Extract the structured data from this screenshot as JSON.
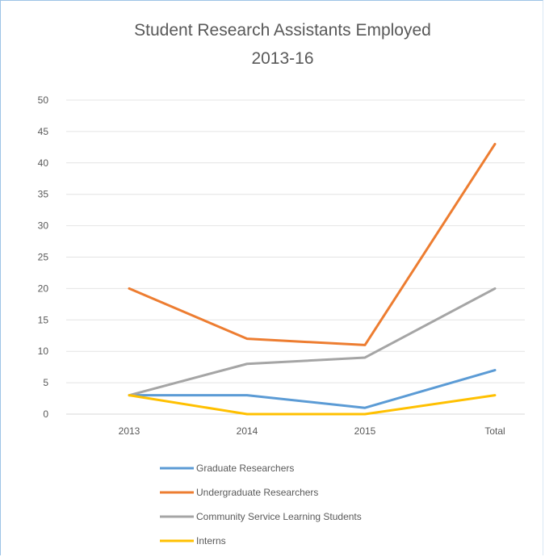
{
  "chart_data": {
    "type": "line",
    "title_lines": [
      "Student Research Assistants Employed",
      "2013-16"
    ],
    "categories": [
      "2013",
      "2014",
      "2015",
      "Total"
    ],
    "ylim": [
      0,
      50
    ],
    "yticks": [
      0,
      5,
      10,
      15,
      20,
      25,
      30,
      35,
      40,
      45,
      50
    ],
    "grid": true,
    "legend_position": "bottom",
    "series": [
      {
        "name": "Graduate Researchers",
        "values": [
          3,
          3,
          1,
          7
        ],
        "color": "#5b9bd5"
      },
      {
        "name": "Undergraduate Researchers",
        "values": [
          20,
          12,
          11,
          43
        ],
        "color": "#ed7d31"
      },
      {
        "name": "Community Service Learning Students",
        "values": [
          3,
          8,
          9,
          20
        ],
        "color": "#a5a5a5"
      },
      {
        "name": "Interns",
        "values": [
          3,
          0,
          0,
          3
        ],
        "color": "#ffc000"
      }
    ]
  }
}
